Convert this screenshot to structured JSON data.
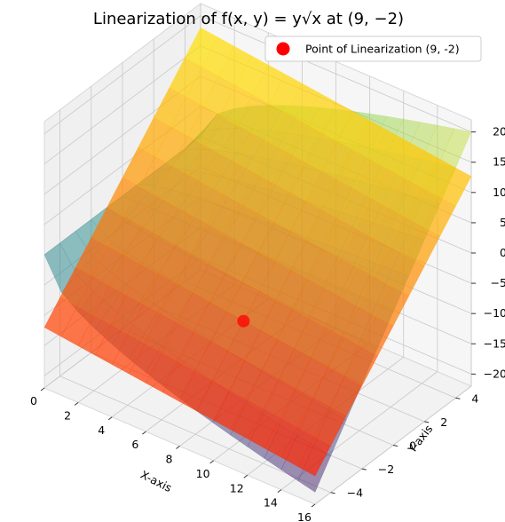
{
  "chart_data": {
    "type": "surface3d",
    "title": "Linearization of f(x, y) = y√x at (9, −2)",
    "xlabel": "X-axis",
    "ylabel": "Y-axis",
    "zlabel": "",
    "xlim": [
      0,
      16
    ],
    "ylim": [
      -5,
      5
    ],
    "zlim": [
      -22,
      22
    ],
    "x_ticks": [
      "0",
      "2",
      "4",
      "6",
      "8",
      "10",
      "12",
      "14",
      "16"
    ],
    "y_ticks": [
      "−4",
      "−2",
      "0",
      "2",
      "4"
    ],
    "z_ticks": [
      "−20",
      "−15",
      "−10",
      "−5",
      "0",
      "5",
      "10",
      "15",
      "20"
    ],
    "grid": true,
    "legend": {
      "placement": "upper right",
      "entries": [
        {
          "label": "Point of Linearization (9, -2)",
          "color": "#ff0000",
          "marker": "circle"
        }
      ]
    },
    "series": [
      {
        "kind": "surface",
        "function": "f(x,y) = y*sqrt(x)",
        "colormap": "viridis",
        "alpha": 0.5
      },
      {
        "kind": "surface",
        "function": "L(x,y) = -6 - (1/3)(x-9) + 3(y+2)",
        "colormap": "autumn",
        "alpha": 0.7
      },
      {
        "kind": "point",
        "x": 9,
        "y": -2,
        "z": -6,
        "color": "#ff0000"
      }
    ]
  }
}
